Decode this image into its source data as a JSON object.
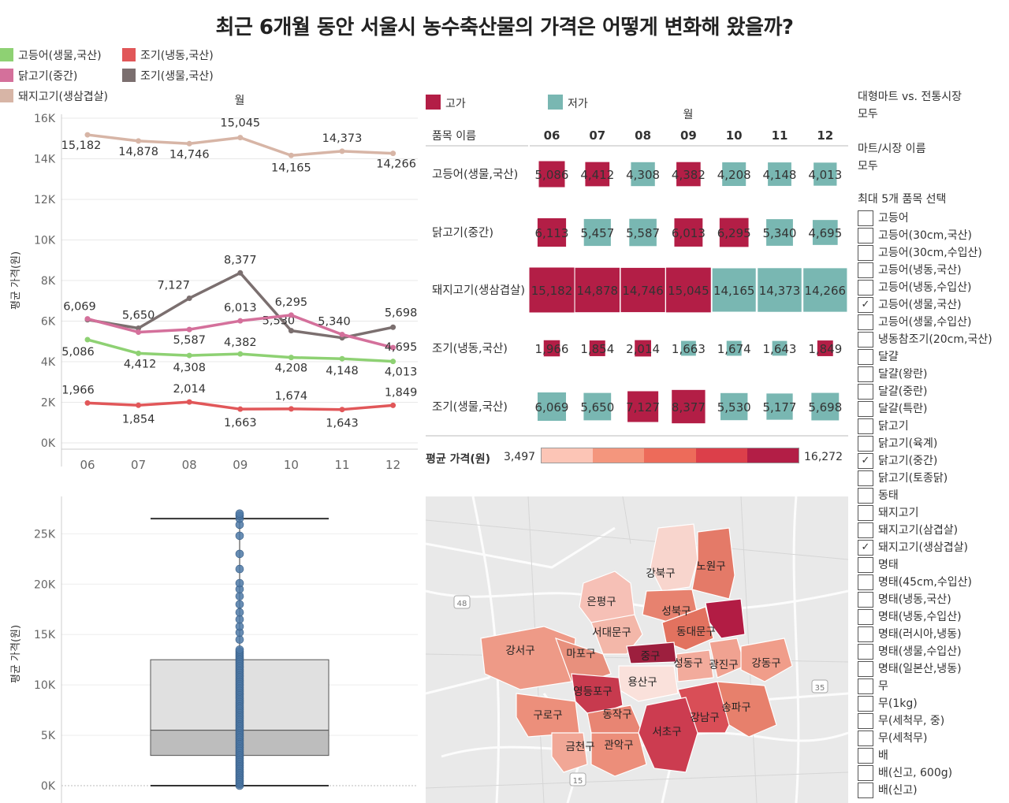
{
  "title": "최근 6개월 동안 서울시 농수축산물의 가격은 어떻게 변화해 왔을까?",
  "line_legend": [
    {
      "label": "고등어(생물,국산)",
      "color": "#8ed173"
    },
    {
      "label": "조기(냉동,국산)",
      "color": "#e15759"
    },
    {
      "label": "닭고기(중간)",
      "color": "#d4709b"
    },
    {
      "label": "조기(생물,국산)",
      "color": "#7b6f6f"
    },
    {
      "label": "돼지고기(생삼겹살)",
      "color": "#d7b5a6"
    }
  ],
  "line_chart": {
    "header": "월",
    "ylabel": "평균 가격(원)"
  },
  "highlight_legend": [
    {
      "label": "고가",
      "color": "#b31e46"
    },
    {
      "label": "저가",
      "color": "#79b7b2"
    }
  ],
  "table": {
    "header_top": "월",
    "row_header": "품목 이름",
    "months": [
      "06",
      "07",
      "08",
      "09",
      "10",
      "11",
      "12"
    ]
  },
  "heat_legend": {
    "label": "평균 가격(원)",
    "min": "3,497",
    "max": "16,272",
    "colors": [
      "#fcc5b6",
      "#f4967d",
      "#ed6b5a",
      "#dc3f4a",
      "#b31e46"
    ]
  },
  "box_plot": {
    "ylabel": "평균 가격(원)",
    "ticks": [
      "0K",
      "5K",
      "10K",
      "15K",
      "20K",
      "25K"
    ],
    "min": 0,
    "q1": 3000,
    "median": 5500,
    "q3": 12500,
    "whisker_max": 26500,
    "point_max": 27000
  },
  "map": {
    "districts": [
      "강북구",
      "노원구",
      "은평구",
      "성북구",
      "서대문구",
      "동대문구",
      "강서구",
      "마포구",
      "중구",
      "성동구",
      "광진구",
      "강동구",
      "용산구",
      "영등포구",
      "구로구",
      "동작구",
      "강남구",
      "송파구",
      "서초구",
      "금천구",
      "관악구"
    ],
    "road_labels": [
      "48",
      "35",
      "15"
    ]
  },
  "filters": {
    "market_type_title": "대형마트 vs. 전통시장",
    "market_type_value": "모두",
    "market_name_title": "마트/시장 이름",
    "market_name_value": "모두",
    "item_select_title": "최대 5개 품목 선택",
    "items": [
      {
        "label": "고등어",
        "checked": false
      },
      {
        "label": "고등어(30cm,국산)",
        "checked": false
      },
      {
        "label": "고등어(30cm,수입산)",
        "checked": false
      },
      {
        "label": "고등어(냉동,국산)",
        "checked": false
      },
      {
        "label": "고등어(냉동,수입산)",
        "checked": false
      },
      {
        "label": "고등어(생물,국산)",
        "checked": true
      },
      {
        "label": "고등어(생물,수입산)",
        "checked": false
      },
      {
        "label": "냉동참조기(20cm,국산)",
        "checked": false
      },
      {
        "label": "달걀",
        "checked": false
      },
      {
        "label": "달걀(왕란)",
        "checked": false
      },
      {
        "label": "달걀(중란)",
        "checked": false
      },
      {
        "label": "달걀(특란)",
        "checked": false
      },
      {
        "label": "닭고기",
        "checked": false
      },
      {
        "label": "닭고기(육계)",
        "checked": false
      },
      {
        "label": "닭고기(중간)",
        "checked": true
      },
      {
        "label": "닭고기(토종닭)",
        "checked": false
      },
      {
        "label": "동태",
        "checked": false
      },
      {
        "label": "돼지고기",
        "checked": false
      },
      {
        "label": "돼지고기(삼겹살)",
        "checked": false
      },
      {
        "label": "돼지고기(생삼겹살)",
        "checked": true
      },
      {
        "label": "명태",
        "checked": false
      },
      {
        "label": "명태(45cm,수입산)",
        "checked": false
      },
      {
        "label": "명태(냉동,국산)",
        "checked": false
      },
      {
        "label": "명태(냉동,수입산)",
        "checked": false
      },
      {
        "label": "명태(러시아,냉동)",
        "checked": false
      },
      {
        "label": "명태(생물,수입산)",
        "checked": false
      },
      {
        "label": "명태(일본산,냉동)",
        "checked": false
      },
      {
        "label": "무",
        "checked": false
      },
      {
        "label": "무(1kg)",
        "checked": false
      },
      {
        "label": "무(세척무, 중)",
        "checked": false
      },
      {
        "label": "무(세척무)",
        "checked": false
      },
      {
        "label": "배",
        "checked": false
      },
      {
        "label": "배(신고, 600g)",
        "checked": false
      },
      {
        "label": "배(신고)",
        "checked": false
      }
    ]
  },
  "chart_data": [
    {
      "type": "line",
      "x": [
        "06",
        "07",
        "08",
        "09",
        "10",
        "11",
        "12"
      ],
      "ylim": [
        0,
        16000
      ],
      "yticks": [
        "0K",
        "2K",
        "4K",
        "6K",
        "8K",
        "10K",
        "12K",
        "14K",
        "16K"
      ],
      "xlabel": "월",
      "ylabel": "평균 가격(원)",
      "series": [
        {
          "name": "돼지고기(생삼겹살)",
          "color": "#d7b5a6",
          "values": [
            15182,
            14878,
            14746,
            15045,
            14165,
            14373,
            14266
          ],
          "labels": [
            "15,182",
            "14,878",
            "14,746",
            "15,045",
            "14,165",
            "14,373",
            "14,266"
          ]
        },
        {
          "name": "조기(생물,국산)",
          "color": "#7b6f6f",
          "values": [
            6069,
            5650,
            7127,
            8377,
            5530,
            5177,
            5698
          ],
          "labels": [
            "6,069",
            "5,650",
            "7,127",
            "8,377",
            "5,530",
            "",
            "5,698"
          ]
        },
        {
          "name": "닭고기(중간)",
          "color": "#d4709b",
          "values": [
            6113,
            5457,
            5587,
            6013,
            6295,
            5340,
            4695
          ],
          "labels": [
            "",
            "",
            "5,587",
            "6,013",
            "6,295",
            "5,340",
            "4,695"
          ]
        },
        {
          "name": "고등어(생물,국산)",
          "color": "#8ed173",
          "values": [
            5086,
            4412,
            4308,
            4382,
            4208,
            4148,
            4013
          ],
          "labels": [
            "5,086",
            "4,412",
            "4,308",
            "4,382",
            "4,208",
            "4,148",
            "4,013"
          ]
        },
        {
          "name": "조기(냉동,국산)",
          "color": "#e15759",
          "values": [
            1966,
            1854,
            2014,
            1663,
            1674,
            1643,
            1849
          ],
          "labels": [
            "1,966",
            "1,854",
            "2,014",
            "1,663",
            "1,674",
            "1,643",
            "1,849"
          ]
        }
      ]
    },
    {
      "type": "table",
      "columns": [
        "06",
        "07",
        "08",
        "09",
        "10",
        "11",
        "12"
      ],
      "rows": [
        {
          "name": "고등어(생물,국산)",
          "values": [
            5086,
            4412,
            4308,
            4382,
            4208,
            4148,
            4013
          ],
          "labels": [
            "5,086",
            "4,412",
            "4,308",
            "4,382",
            "4,208",
            "4,148",
            "4,013"
          ],
          "high": [
            true,
            true,
            false,
            true,
            false,
            false,
            false
          ]
        },
        {
          "name": "닭고기(중간)",
          "values": [
            6113,
            5457,
            5587,
            6013,
            6295,
            5340,
            4695
          ],
          "labels": [
            "6,113",
            "5,457",
            "5,587",
            "6,013",
            "6,295",
            "5,340",
            "4,695"
          ],
          "high": [
            true,
            false,
            false,
            true,
            true,
            false,
            false
          ]
        },
        {
          "name": "돼지고기(생삼겹살)",
          "values": [
            15182,
            14878,
            14746,
            15045,
            14165,
            14373,
            14266
          ],
          "labels": [
            "15,182",
            "14,878",
            "14,746",
            "15,045",
            "14,165",
            "14,373",
            "14,266"
          ],
          "high": [
            true,
            true,
            true,
            true,
            false,
            false,
            false
          ]
        },
        {
          "name": "조기(냉동,국산)",
          "values": [
            1966,
            1854,
            2014,
            1663,
            1674,
            1643,
            1849
          ],
          "labels": [
            "1,966",
            "1,854",
            "2,014",
            "1,663",
            "1,674",
            "1,643",
            "1,849"
          ],
          "high": [
            true,
            true,
            true,
            false,
            false,
            false,
            true
          ]
        },
        {
          "name": "조기(생물,국산)",
          "values": [
            6069,
            5650,
            7127,
            8377,
            5530,
            5177,
            5698
          ],
          "labels": [
            "6,069",
            "5,650",
            "7,127",
            "8,377",
            "5,530",
            "5,177",
            "5,698"
          ],
          "high": [
            false,
            false,
            true,
            true,
            false,
            false,
            false
          ]
        }
      ]
    }
  ]
}
